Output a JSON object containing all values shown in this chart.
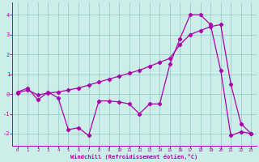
{
  "xlabel": "Windchill (Refroidissement éolien,°C)",
  "bg_color": "#cceee8",
  "line_color": "#aa00aa",
  "grid_color": "#99cccc",
  "hours": [
    0,
    1,
    2,
    3,
    4,
    5,
    6,
    7,
    8,
    9,
    10,
    11,
    12,
    13,
    14,
    15,
    16,
    17,
    18,
    19,
    20,
    21,
    22,
    23
  ],
  "line1": [
    0.1,
    0.3,
    -0.3,
    0.1,
    -0.2,
    -1.8,
    -1.7,
    -2.1,
    -0.35,
    -0.35,
    -0.4,
    -0.5,
    -1.0,
    -0.5,
    -0.5,
    1.5,
    2.8,
    4.0,
    4.0,
    3.5,
    1.2,
    -2.1,
    -1.9,
    -2.0
  ],
  "line2": [
    0.05,
    0.2,
    -0.05,
    0.05,
    0.1,
    0.2,
    0.3,
    0.45,
    0.6,
    0.75,
    0.9,
    1.05,
    1.2,
    1.4,
    1.6,
    1.8,
    2.5,
    3.0,
    3.2,
    3.4,
    3.5,
    0.5,
    -1.5,
    -2.0
  ],
  "ylim": [
    -2.6,
    4.6
  ],
  "xlim": [
    -0.5,
    23.5
  ],
  "yticks": [
    -2,
    -1,
    0,
    1,
    2,
    3,
    4
  ],
  "xticks": [
    0,
    1,
    2,
    3,
    4,
    5,
    6,
    7,
    8,
    9,
    10,
    11,
    12,
    13,
    14,
    15,
    16,
    17,
    18,
    19,
    20,
    21,
    22,
    23
  ]
}
